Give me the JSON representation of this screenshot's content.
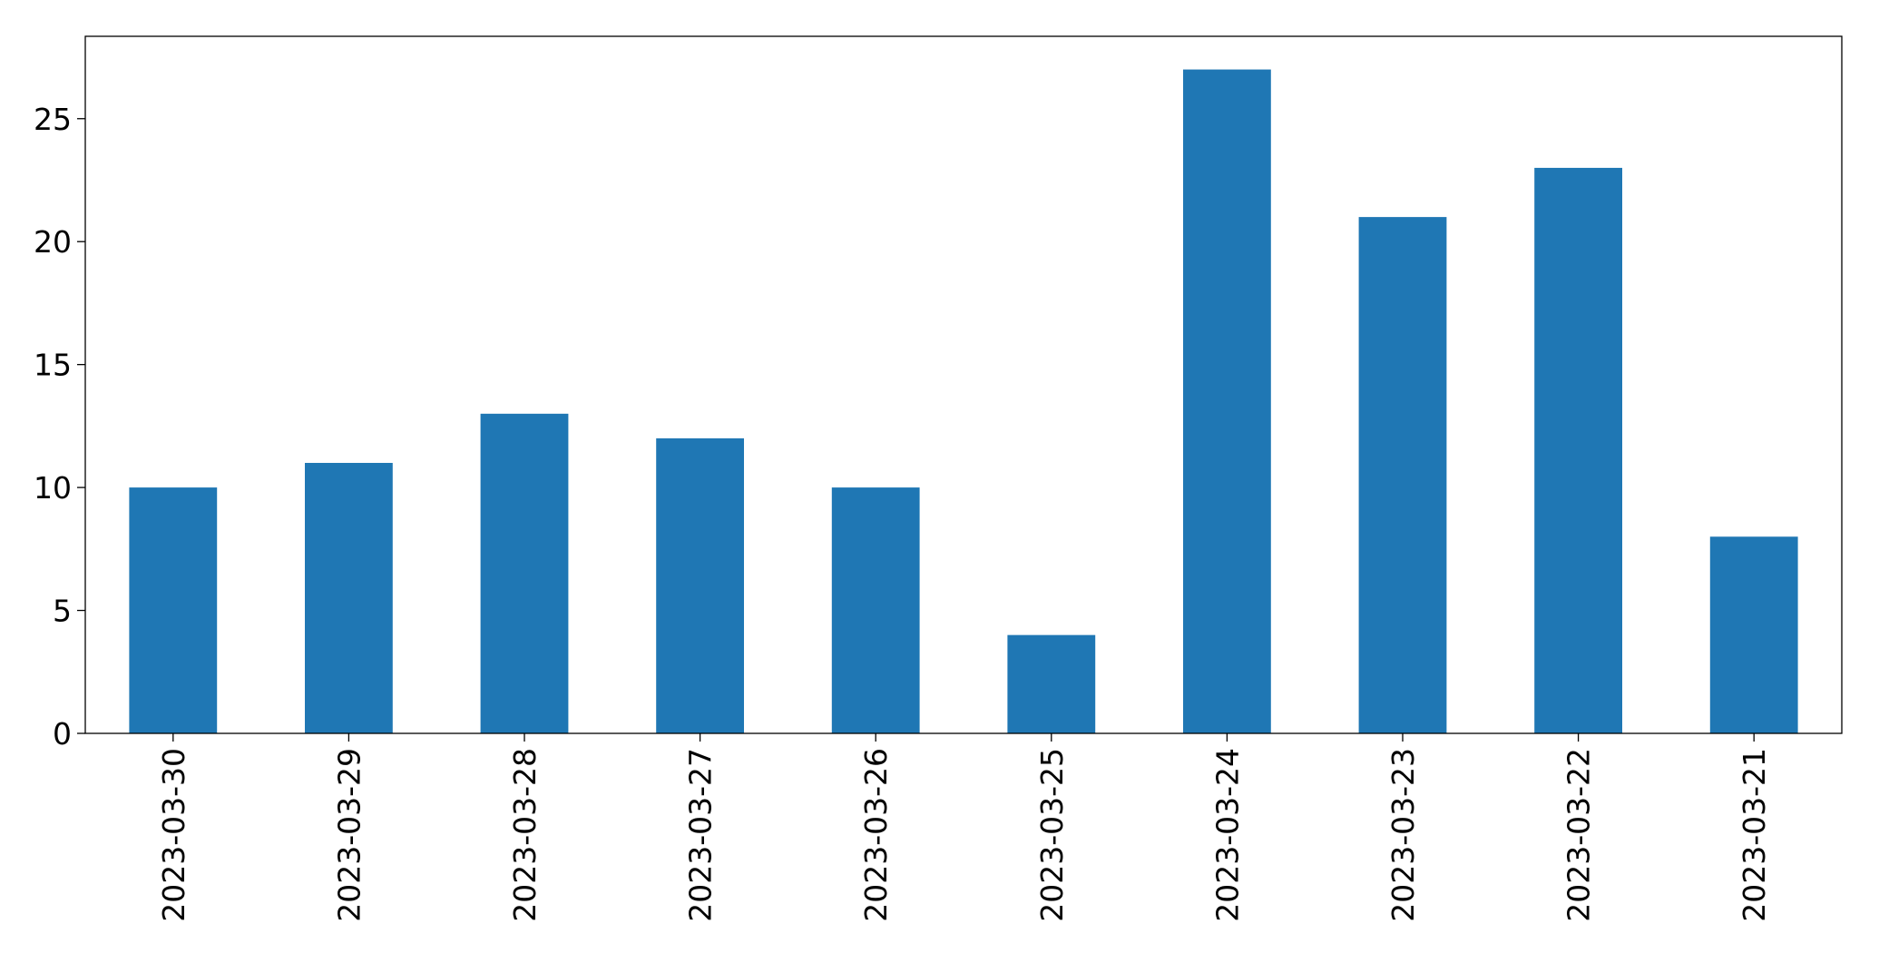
{
  "chart_data": {
    "type": "bar",
    "categories": [
      "2023-03-30",
      "2023-03-29",
      "2023-03-28",
      "2023-03-27",
      "2023-03-26",
      "2023-03-25",
      "2023-03-24",
      "2023-03-23",
      "2023-03-22",
      "2023-03-21"
    ],
    "values": [
      10,
      11,
      13,
      12,
      10,
      4,
      27,
      21,
      23,
      8
    ],
    "color": "#1f77b4",
    "ylim": [
      0,
      28.35
    ],
    "yticks": [
      0,
      5,
      10,
      15,
      20,
      25
    ],
    "grid": false
  }
}
